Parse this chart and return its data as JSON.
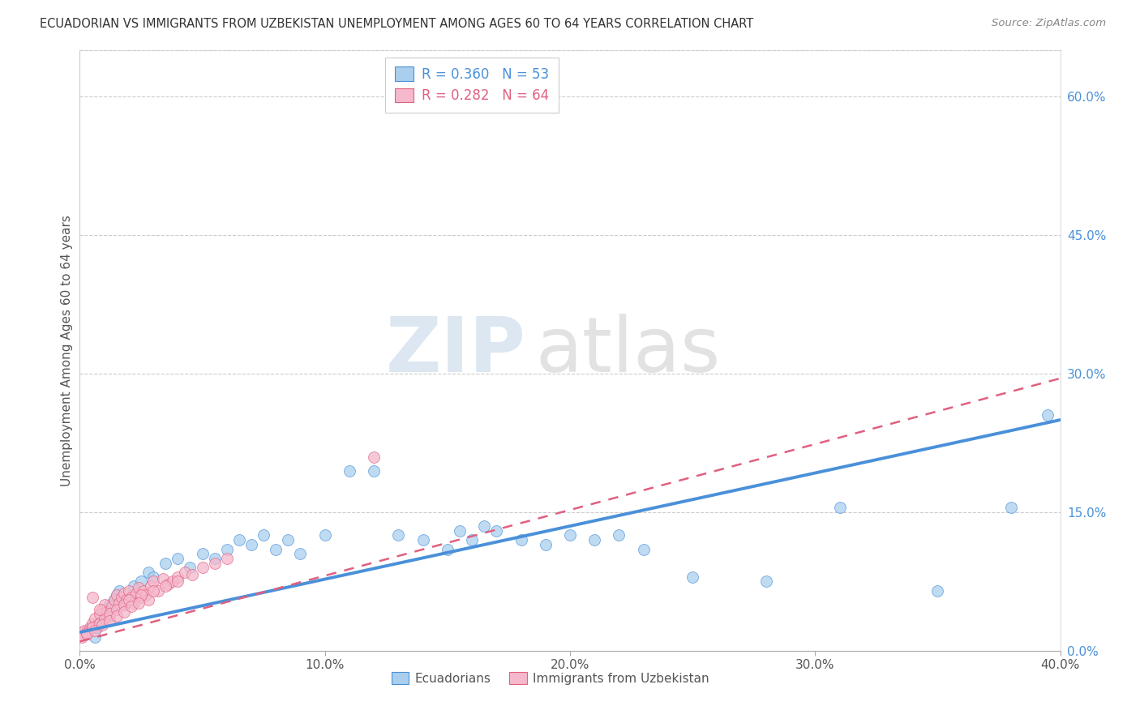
{
  "title": "ECUADORIAN VS IMMIGRANTS FROM UZBEKISTAN UNEMPLOYMENT AMONG AGES 60 TO 64 YEARS CORRELATION CHART",
  "source": "Source: ZipAtlas.com",
  "ylabel": "Unemployment Among Ages 60 to 64 years",
  "xlim": [
    0.0,
    0.4
  ],
  "ylim": [
    0.0,
    0.65
  ],
  "blue_R": 0.36,
  "blue_N": 53,
  "pink_R": 0.282,
  "pink_N": 64,
  "blue_color": "#aacfee",
  "blue_line_color": "#4a90d9",
  "pink_color": "#f5b8cc",
  "pink_line_color": "#e06080",
  "legend_label_blue": "Ecuadorians",
  "legend_label_pink": "Immigrants from Uzbekistan",
  "blue_scatter_x": [
    0.003,
    0.005,
    0.006,
    0.007,
    0.008,
    0.009,
    0.01,
    0.011,
    0.012,
    0.013,
    0.014,
    0.015,
    0.016,
    0.018,
    0.02,
    0.022,
    0.025,
    0.028,
    0.03,
    0.035,
    0.04,
    0.045,
    0.05,
    0.055,
    0.06,
    0.065,
    0.07,
    0.075,
    0.08,
    0.085,
    0.09,
    0.1,
    0.11,
    0.12,
    0.13,
    0.14,
    0.15,
    0.155,
    0.16,
    0.165,
    0.17,
    0.18,
    0.19,
    0.2,
    0.21,
    0.22,
    0.23,
    0.25,
    0.28,
    0.31,
    0.35,
    0.38,
    0.395
  ],
  "blue_scatter_y": [
    0.02,
    0.025,
    0.015,
    0.025,
    0.03,
    0.035,
    0.04,
    0.045,
    0.05,
    0.045,
    0.055,
    0.06,
    0.065,
    0.05,
    0.055,
    0.07,
    0.075,
    0.085,
    0.08,
    0.095,
    0.1,
    0.09,
    0.105,
    0.1,
    0.11,
    0.12,
    0.115,
    0.125,
    0.11,
    0.12,
    0.105,
    0.125,
    0.195,
    0.195,
    0.125,
    0.12,
    0.11,
    0.13,
    0.12,
    0.135,
    0.13,
    0.12,
    0.115,
    0.125,
    0.12,
    0.125,
    0.11,
    0.08,
    0.075,
    0.155,
    0.065,
    0.155,
    0.255
  ],
  "pink_scatter_x": [
    0.001,
    0.002,
    0.003,
    0.004,
    0.005,
    0.006,
    0.007,
    0.008,
    0.009,
    0.01,
    0.011,
    0.012,
    0.013,
    0.014,
    0.015,
    0.016,
    0.017,
    0.018,
    0.019,
    0.02,
    0.021,
    0.022,
    0.023,
    0.024,
    0.025,
    0.026,
    0.027,
    0.028,
    0.029,
    0.03,
    0.032,
    0.034,
    0.036,
    0.038,
    0.04,
    0.043,
    0.046,
    0.05,
    0.055,
    0.06,
    0.001,
    0.003,
    0.005,
    0.008,
    0.01,
    0.012,
    0.015,
    0.018,
    0.02,
    0.025,
    0.03,
    0.035,
    0.04,
    0.003,
    0.006,
    0.009,
    0.012,
    0.015,
    0.018,
    0.021,
    0.024,
    0.005,
    0.008,
    0.12
  ],
  "pink_scatter_y": [
    0.02,
    0.022,
    0.018,
    0.025,
    0.03,
    0.035,
    0.028,
    0.04,
    0.045,
    0.05,
    0.042,
    0.038,
    0.048,
    0.055,
    0.06,
    0.052,
    0.058,
    0.062,
    0.055,
    0.065,
    0.058,
    0.052,
    0.062,
    0.068,
    0.058,
    0.065,
    0.06,
    0.055,
    0.07,
    0.075,
    0.065,
    0.078,
    0.072,
    0.075,
    0.08,
    0.085,
    0.082,
    0.09,
    0.095,
    0.1,
    0.015,
    0.02,
    0.025,
    0.03,
    0.035,
    0.04,
    0.045,
    0.05,
    0.055,
    0.06,
    0.065,
    0.07,
    0.075,
    0.018,
    0.022,
    0.028,
    0.032,
    0.038,
    0.042,
    0.048,
    0.052,
    0.058,
    0.045,
    0.21
  ]
}
